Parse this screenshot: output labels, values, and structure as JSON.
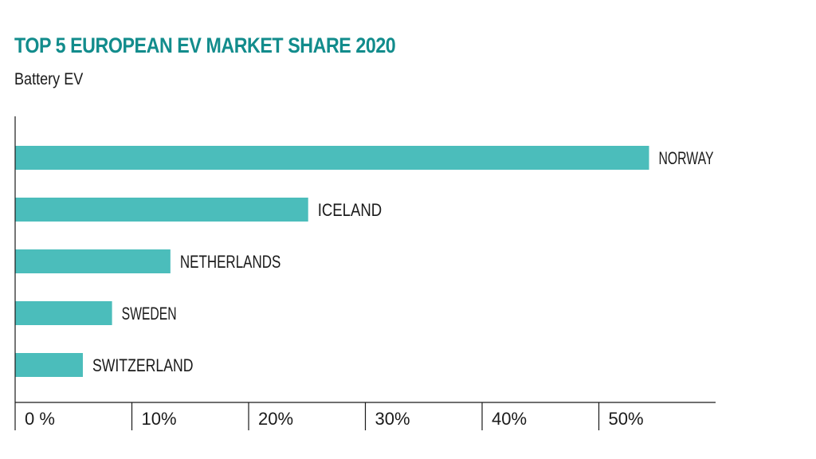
{
  "chart_data": {
    "type": "bar",
    "orientation": "horizontal",
    "title": "TOP 5 EUROPEAN EV MARKET SHARE 2020",
    "subtitle": "Battery EV",
    "categories": [
      "NORWAY",
      "ICELAND",
      "NETHERLANDS",
      "SWEDEN",
      "SWITZERLAND"
    ],
    "values": [
      54.3,
      25.1,
      13.3,
      8.3,
      5.8
    ],
    "unit": "%",
    "xlim": [
      0,
      60
    ],
    "xticks": [
      0,
      10,
      20,
      30,
      40,
      50
    ],
    "xtick_labels": [
      "0 %",
      "10%",
      "20%",
      "30%",
      "40%",
      "50%"
    ],
    "grid": false,
    "bar_color": "#4bbdbb"
  },
  "colors": {
    "title": "#128c8c",
    "bar": "#4bbdbb",
    "axis": "#1a1a1a"
  }
}
